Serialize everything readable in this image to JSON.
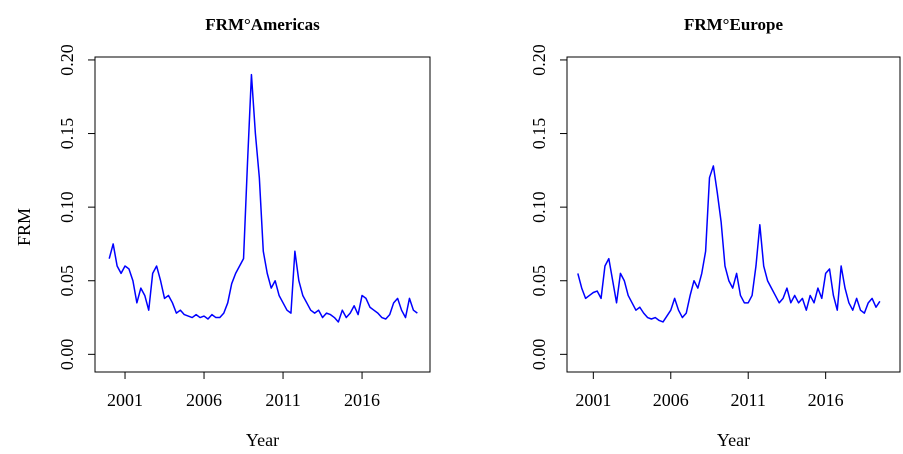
{
  "chart_data": [
    {
      "type": "line",
      "title": "FRM°Americas",
      "xlabel": "Year",
      "ylabel": "FRM",
      "color": "#0000ff",
      "x": [
        2000,
        2000.25,
        2000.5,
        2000.75,
        2001,
        2001.25,
        2001.5,
        2001.75,
        2002,
        2002.25,
        2002.5,
        2002.75,
        2003,
        2003.25,
        2003.5,
        2003.75,
        2004,
        2004.25,
        2004.5,
        2004.75,
        2005,
        2005.25,
        2005.5,
        2005.75,
        2006,
        2006.25,
        2006.5,
        2006.75,
        2007,
        2007.25,
        2007.5,
        2007.75,
        2008,
        2008.25,
        2008.5,
        2008.75,
        2009,
        2009.25,
        2009.5,
        2009.75,
        2010,
        2010.25,
        2010.5,
        2010.75,
        2011,
        2011.25,
        2011.5,
        2011.75,
        2012,
        2012.25,
        2012.5,
        2012.75,
        2013,
        2013.25,
        2013.5,
        2013.75,
        2014,
        2014.25,
        2014.5,
        2014.75,
        2015,
        2015.25,
        2015.5,
        2015.75,
        2016,
        2016.25,
        2016.5,
        2016.75,
        2017,
        2017.25,
        2017.5,
        2017.75,
        2018,
        2018.25,
        2018.5,
        2018.75,
        2019,
        2019.25,
        2019.5
      ],
      "values": [
        0.065,
        0.075,
        0.06,
        0.055,
        0.06,
        0.058,
        0.05,
        0.035,
        0.045,
        0.04,
        0.03,
        0.055,
        0.06,
        0.05,
        0.038,
        0.04,
        0.035,
        0.028,
        0.03,
        0.027,
        0.026,
        0.025,
        0.027,
        0.025,
        0.026,
        0.024,
        0.027,
        0.025,
        0.025,
        0.028,
        0.035,
        0.048,
        0.055,
        0.06,
        0.065,
        0.13,
        0.19,
        0.15,
        0.12,
        0.07,
        0.055,
        0.045,
        0.05,
        0.04,
        0.035,
        0.03,
        0.028,
        0.07,
        0.05,
        0.04,
        0.035,
        0.03,
        0.028,
        0.03,
        0.025,
        0.028,
        0.027,
        0.025,
        0.022,
        0.03,
        0.025,
        0.028,
        0.033,
        0.027,
        0.04,
        0.038,
        0.032,
        0.03,
        0.028,
        0.025,
        0.024,
        0.027,
        0.035,
        0.038,
        0.03,
        0.025,
        0.038,
        0.03,
        0.028
      ],
      "xlim": [
        1999.1,
        2020.3
      ],
      "ylim": [
        -0.012,
        0.202
      ],
      "xticks": [
        2001,
        2006,
        2011,
        2016
      ],
      "yticks": [
        {
          "value": 0,
          "label": "0.00"
        },
        {
          "value": 0.05,
          "label": "0.05"
        },
        {
          "value": 0.1,
          "label": "0.10"
        },
        {
          "value": 0.15,
          "label": "0.15"
        },
        {
          "value": 0.2,
          "label": "0.20"
        }
      ]
    },
    {
      "type": "line",
      "title": "FRM°Europe",
      "xlabel": "Year",
      "color": "#0000ff",
      "x": [
        2000,
        2000.25,
        2000.5,
        2000.75,
        2001,
        2001.25,
        2001.5,
        2001.75,
        2002,
        2002.25,
        2002.5,
        2002.75,
        2003,
        2003.25,
        2003.5,
        2003.75,
        2004,
        2004.25,
        2004.5,
        2004.75,
        2005,
        2005.25,
        2005.5,
        2005.75,
        2006,
        2006.25,
        2006.5,
        2006.75,
        2007,
        2007.25,
        2007.5,
        2007.75,
        2008,
        2008.25,
        2008.5,
        2008.75,
        2009,
        2009.25,
        2009.5,
        2009.75,
        2010,
        2010.25,
        2010.5,
        2010.75,
        2011,
        2011.25,
        2011.5,
        2011.75,
        2012,
        2012.25,
        2012.5,
        2012.75,
        2013,
        2013.25,
        2013.5,
        2013.75,
        2014,
        2014.25,
        2014.5,
        2014.75,
        2015,
        2015.25,
        2015.5,
        2015.75,
        2016,
        2016.25,
        2016.5,
        2016.75,
        2017,
        2017.25,
        2017.5,
        2017.75,
        2018,
        2018.25,
        2018.5,
        2018.75,
        2019,
        2019.25,
        2019.5
      ],
      "values": [
        0.055,
        0.045,
        0.038,
        0.04,
        0.042,
        0.043,
        0.038,
        0.06,
        0.065,
        0.05,
        0.035,
        0.055,
        0.05,
        0.04,
        0.035,
        0.03,
        0.032,
        0.028,
        0.025,
        0.024,
        0.025,
        0.023,
        0.022,
        0.026,
        0.03,
        0.038,
        0.03,
        0.025,
        0.028,
        0.04,
        0.05,
        0.045,
        0.055,
        0.07,
        0.12,
        0.128,
        0.11,
        0.09,
        0.06,
        0.05,
        0.045,
        0.055,
        0.04,
        0.035,
        0.035,
        0.04,
        0.06,
        0.088,
        0.06,
        0.05,
        0.045,
        0.04,
        0.035,
        0.038,
        0.045,
        0.035,
        0.04,
        0.035,
        0.038,
        0.03,
        0.04,
        0.035,
        0.045,
        0.038,
        0.055,
        0.058,
        0.04,
        0.03,
        0.06,
        0.045,
        0.035,
        0.03,
        0.038,
        0.03,
        0.028,
        0.035,
        0.038,
        0.032,
        0.036
      ],
      "xlim": [
        1999.3,
        2020.8
      ],
      "ylim": [
        -0.012,
        0.202
      ],
      "xticks": [
        2001,
        2006,
        2011,
        2016
      ],
      "yticks": [
        {
          "value": 0,
          "label": "0.00"
        },
        {
          "value": 0.05,
          "label": "0.05"
        },
        {
          "value": 0.1,
          "label": "0.10"
        },
        {
          "value": 0.15,
          "label": "0.15"
        },
        {
          "value": 0.2,
          "label": "0.20"
        }
      ]
    }
  ]
}
